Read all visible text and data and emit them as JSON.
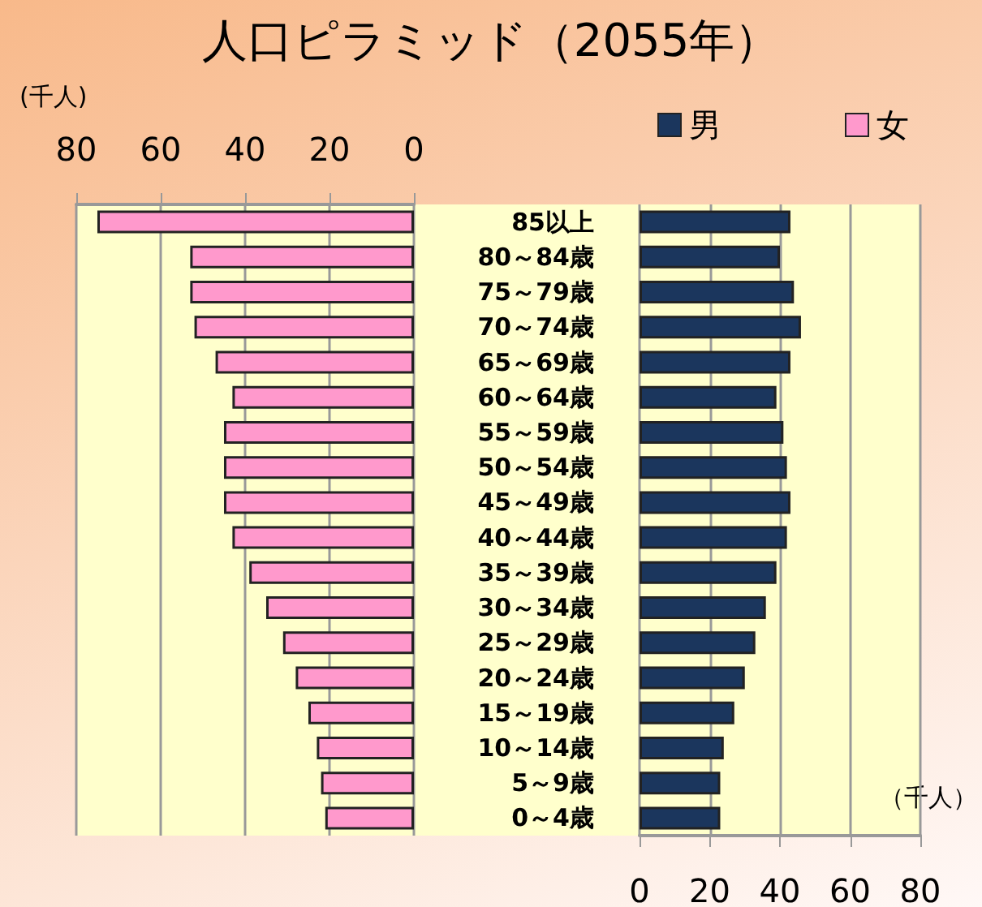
{
  "chart_data": [
    {
      "type": "bar",
      "orientation": "horizontal",
      "xlabel": "(千人)",
      "tick_labels": "x",
      "categories": [
        null,
        null,
        null,
        null,
        null,
        null,
        null,
        null,
        null,
        null,
        null,
        null,
        null,
        null,
        null,
        null,
        null,
        null
      ],
      "series": [
        {
          "name": "女",
          "color": "#ff99cc",
          "values": [
            75,
            53,
            53,
            52,
            47,
            43,
            45,
            45,
            45,
            43,
            39,
            35,
            31,
            28,
            25,
            23,
            22,
            21
          ]
        }
      ],
      "xlim": [
        80,
        0
      ],
      "xticks": [
        80,
        60,
        40,
        20,
        0
      ],
      "grid": "x",
      "legend": "top right"
    },
    {
      "type": "bar",
      "orientation": "horizontal",
      "title": "人口ピラミッド（2055年）",
      "xlabel": "（千人）",
      "categories": [
        "85以上",
        "80～84歳",
        "75～79歳",
        "70～74歳",
        "65～69歳",
        "60～64歳",
        "55～59歳",
        "50～54歳",
        "45～49歳",
        "40～44歳",
        "35～39歳",
        "30～34歳",
        "25～29歳",
        "20～24歳",
        "15～19歳",
        "10～14歳",
        "5～9歳",
        "0～4歳"
      ],
      "series": [
        {
          "name": "男",
          "color": "#1b365d",
          "values": [
            43,
            40,
            44,
            46,
            43,
            39,
            41,
            42,
            43,
            42,
            39,
            36,
            33,
            30,
            27,
            24,
            23,
            23
          ]
        }
      ],
      "xlim": [
        0,
        80
      ],
      "xticks": [
        0,
        20,
        40,
        60,
        80
      ],
      "grid": "x",
      "legend": "top left"
    }
  ]
}
